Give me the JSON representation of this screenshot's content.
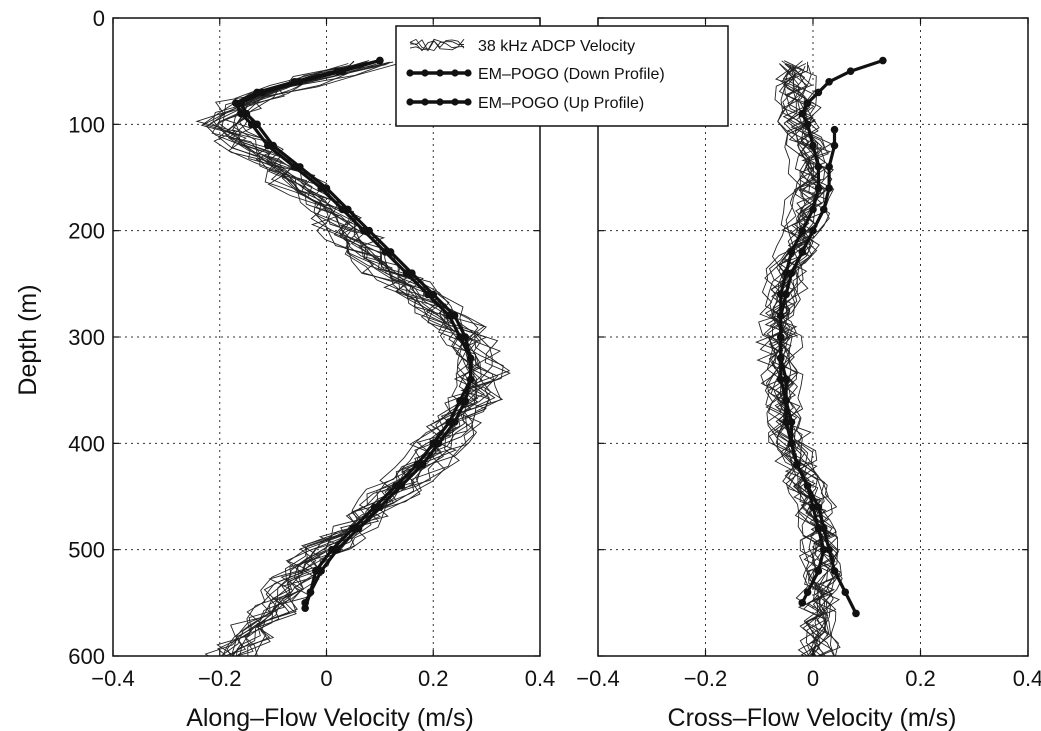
{
  "chart_data": [
    {
      "type": "line",
      "panel": "left",
      "xlabel": "Along–Flow Velocity (m/s)",
      "ylabel": "Depth (m)",
      "xlim": [
        -0.4,
        0.4
      ],
      "ylim": [
        600,
        0
      ],
      "xticks": [
        -0.4,
        -0.2,
        0,
        0.2,
        0.4
      ],
      "xtick_labels": [
        "−0.4",
        "−0.2",
        "0",
        "0.2",
        "0.4"
      ],
      "yticks": [
        0,
        100,
        200,
        300,
        400,
        500,
        600
      ],
      "ytick_labels": [
        "0",
        "100",
        "200",
        "300",
        "400",
        "500",
        "600"
      ],
      "grid": true,
      "legend": {
        "placement": "top-center",
        "entries": [
          "38 kHz ADCP Velocity",
          "EM–POGO (Down Profile)",
          "EM–POGO (Up Profile)"
        ]
      },
      "series": [
        {
          "name": "38 kHz ADCP Velocity",
          "style": "thin-lines",
          "mean_profile": {
            "depth": [
              40,
              60,
              80,
              100,
              120,
              150,
              180,
              210,
              240,
              270,
              300,
              330,
              360,
              390,
              420,
              450,
              480,
              510,
              540,
              570,
              600
            ],
            "velocity": [
              0.1,
              -0.05,
              -0.16,
              -0.2,
              -0.15,
              -0.07,
              0.0,
              0.05,
              0.12,
              0.2,
              0.26,
              0.29,
              0.27,
              0.23,
              0.18,
              0.12,
              0.05,
              -0.03,
              -0.08,
              -0.13,
              -0.18
            ]
          },
          "ensemble_count": 18
        },
        {
          "name": "EM–POGO (Down Profile)",
          "depth": [
            40,
            50,
            60,
            70,
            80,
            90,
            100,
            120,
            140,
            160,
            180,
            200,
            220,
            240,
            260,
            280,
            300,
            320,
            340,
            360,
            380,
            400,
            420,
            440,
            460,
            480,
            500,
            520,
            540,
            550
          ],
          "velocity": [
            0.1,
            0.03,
            -0.05,
            -0.12,
            -0.16,
            -0.15,
            -0.13,
            -0.1,
            -0.05,
            0.0,
            0.04,
            0.08,
            0.12,
            0.16,
            0.2,
            0.24,
            0.26,
            0.27,
            0.27,
            0.26,
            0.24,
            0.21,
            0.18,
            0.14,
            0.1,
            0.06,
            0.02,
            -0.01,
            -0.03,
            -0.04
          ]
        },
        {
          "name": "EM–POGO (Up Profile)",
          "depth": [
            40,
            50,
            60,
            70,
            80,
            90,
            100,
            120,
            140,
            160,
            180,
            200,
            220,
            240,
            260,
            280,
            300,
            320,
            340,
            360,
            380,
            400,
            420,
            440,
            460,
            480,
            500,
            520,
            540,
            555
          ],
          "velocity": [
            0.1,
            0.02,
            -0.06,
            -0.13,
            -0.17,
            -0.16,
            -0.14,
            -0.11,
            -0.06,
            -0.01,
            0.03,
            0.07,
            0.11,
            0.15,
            0.19,
            0.23,
            0.25,
            0.27,
            0.27,
            0.25,
            0.23,
            0.2,
            0.17,
            0.13,
            0.09,
            0.05,
            0.01,
            -0.02,
            -0.03,
            -0.04
          ]
        }
      ]
    },
    {
      "type": "line",
      "panel": "right",
      "xlabel": "Cross–Flow Velocity (m/s)",
      "xlim": [
        -0.4,
        0.4
      ],
      "ylim": [
        600,
        0
      ],
      "xticks": [
        -0.4,
        -0.2,
        0,
        0.2,
        0.4
      ],
      "xtick_labels": [
        "−0.4",
        "−0.2",
        "0",
        "0.2",
        "0.4"
      ],
      "grid": true,
      "series": [
        {
          "name": "38 kHz ADCP Velocity",
          "style": "thin-lines",
          "mean_profile": {
            "depth": [
              40,
              70,
              100,
              130,
              160,
              190,
              220,
              250,
              280,
              310,
              340,
              370,
              400,
              430,
              460,
              490,
              520,
              550,
              580,
              600
            ],
            "velocity": [
              -0.04,
              -0.03,
              -0.02,
              0.0,
              0.0,
              -0.01,
              -0.03,
              -0.05,
              -0.06,
              -0.06,
              -0.06,
              -0.05,
              -0.04,
              -0.02,
              0.0,
              0.02,
              0.02,
              0.01,
              0.01,
              0.01
            ]
          },
          "ensemble_count": 18
        },
        {
          "name": "EM–POGO (Down Profile)",
          "depth": [
            40,
            50,
            60,
            70,
            80,
            90,
            100,
            120,
            140,
            160,
            180,
            200,
            220,
            240,
            260,
            280,
            300,
            320,
            340,
            360,
            380,
            400,
            420,
            440,
            460,
            480,
            500,
            520,
            540,
            550
          ],
          "velocity": [
            0.13,
            0.07,
            0.03,
            0.01,
            -0.01,
            -0.02,
            -0.01,
            0.0,
            0.01,
            0.01,
            0.0,
            -0.02,
            -0.04,
            -0.05,
            -0.06,
            -0.06,
            -0.06,
            -0.06,
            -0.05,
            -0.05,
            -0.04,
            -0.04,
            -0.03,
            -0.01,
            0.0,
            0.01,
            0.02,
            0.01,
            -0.01,
            -0.02
          ]
        },
        {
          "name": "EM–POGO (Up Profile)",
          "depth": [
            105,
            120,
            140,
            160,
            180,
            200,
            220,
            240,
            260,
            280,
            300,
            320,
            340,
            360,
            380,
            400,
            420,
            440,
            460,
            480,
            500,
            520,
            540,
            560
          ],
          "velocity": [
            0.04,
            0.04,
            0.03,
            0.03,
            0.02,
            0.0,
            -0.02,
            -0.04,
            -0.05,
            -0.06,
            -0.06,
            -0.06,
            -0.06,
            -0.05,
            -0.05,
            -0.04,
            -0.03,
            -0.01,
            0.01,
            0.02,
            0.03,
            0.04,
            0.06,
            0.08
          ]
        }
      ]
    }
  ]
}
